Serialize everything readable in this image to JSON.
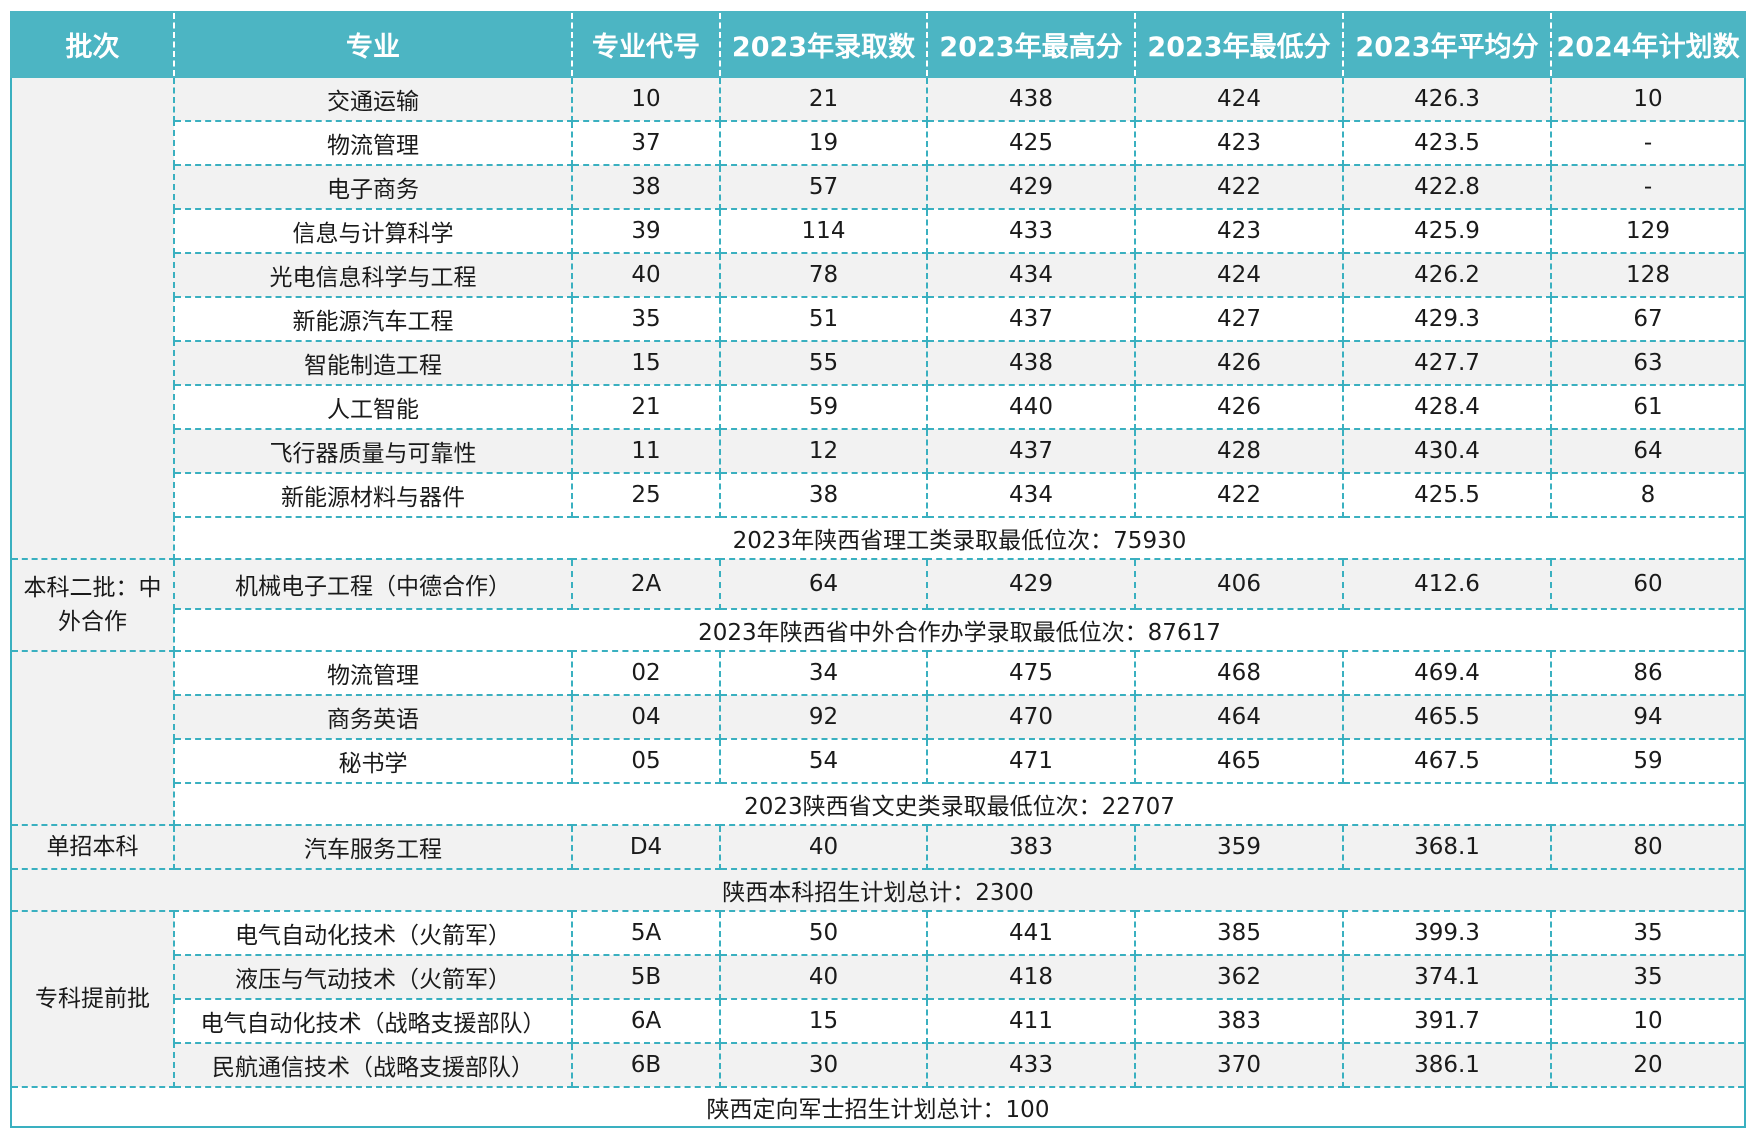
{
  "headers": [
    "批次",
    "专业",
    "专业代号",
    "2023年录取数",
    "2023年最高分",
    "2023年最低分",
    "2023年平均分",
    "2024年计划数"
  ],
  "sections": [
    {
      "batch": "",
      "rows": [
        [
          "交通运输",
          "10",
          "21",
          "438",
          "424",
          "426.3",
          "10"
        ],
        [
          "物流管理",
          "37",
          "19",
          "425",
          "423",
          "423.5",
          "-"
        ],
        [
          "电子商务",
          "38",
          "57",
          "429",
          "422",
          "422.8",
          "-"
        ],
        [
          "信息与计算科学",
          "39",
          "114",
          "433",
          "423",
          "425.9",
          "129"
        ],
        [
          "光电信息科学与工程",
          "40",
          "78",
          "434",
          "424",
          "426.2",
          "128"
        ],
        [
          "新能源汽车工程",
          "35",
          "51",
          "437",
          "427",
          "429.3",
          "67"
        ],
        [
          "智能制造工程",
          "15",
          "55",
          "438",
          "426",
          "427.7",
          "63"
        ],
        [
          "人工智能",
          "21",
          "59",
          "440",
          "426",
          "428.4",
          "61"
        ],
        [
          "飞行器质量与可靠性",
          "11",
          "12",
          "437",
          "428",
          "430.4",
          "64"
        ],
        [
          "新能源材料与器件",
          "25",
          "38",
          "434",
          "422",
          "425.5",
          "8"
        ]
      ],
      "note": "2023年陕西省理工类录取最低位次：75930"
    },
    {
      "batch": "本科二批：中外合作",
      "rows": [
        [
          "机械电子工程（中德合作）",
          "2A",
          "64",
          "429",
          "406",
          "412.6",
          "60"
        ]
      ],
      "note": "2023年陕西省中外合作办学录取最低位次：87617"
    },
    {
      "batch": "",
      "rows": [
        [
          "物流管理",
          "02",
          "34",
          "475",
          "468",
          "469.4",
          "86"
        ],
        [
          "商务英语",
          "04",
          "92",
          "470",
          "464",
          "465.5",
          "94"
        ],
        [
          "秘书学",
          "05",
          "54",
          "471",
          "465",
          "467.5",
          "59"
        ]
      ],
      "note": "2023陕西省文史类录取最低位次：22707"
    },
    {
      "batch": "单招本科",
      "rows": [
        [
          "汽车服务工程",
          "D4",
          "40",
          "383",
          "359",
          "368.1",
          "80"
        ]
      ]
    }
  ],
  "total_note_1": "陕西本科招生计划总计：2300",
  "section5": {
    "batch": "专科提前批",
    "rows": [
      [
        "电气自动化技术（火箭军）",
        "5A",
        "50",
        "441",
        "385",
        "399.3",
        "35"
      ],
      [
        "液压与气动技术（火箭军）",
        "5B",
        "40",
        "418",
        "362",
        "374.1",
        "35"
      ],
      [
        "电气自动化技术（战略支援部队）",
        "6A",
        "15",
        "411",
        "383",
        "391.7",
        "10"
      ],
      [
        "民航通信技术（战略支援部队）",
        "6B",
        "30",
        "433",
        "370",
        "386.1",
        "20"
      ]
    ]
  },
  "total_note_2": "陕西定向军士招生计划总计：100",
  "colors": {
    "header_bg": "#4cb5c3",
    "border": "#3ab0c0",
    "band_bg": "#f2f2f2"
  }
}
